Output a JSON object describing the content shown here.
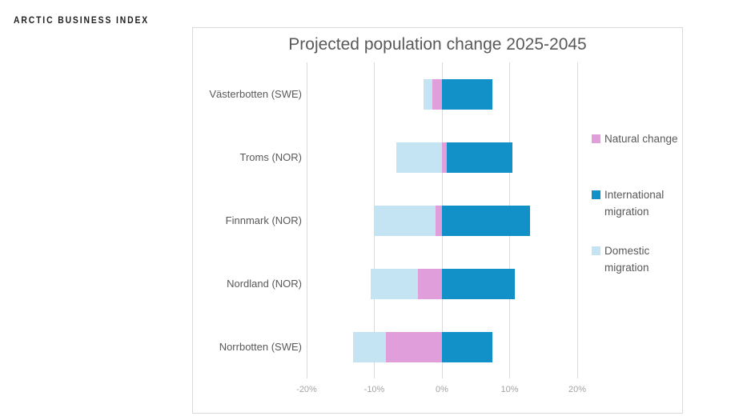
{
  "page": {
    "brand": "ARCTIC BUSINESS INDEX"
  },
  "chart_data": {
    "type": "bar",
    "orientation": "horizontal",
    "stacked": true,
    "title": "Projected population change 2025-2045",
    "categories": [
      "Västerbotten (SWE)",
      "Troms (NOR)",
      "Finnmark (NOR)",
      "Nordland (NOR)",
      "Norrbotten (SWE)"
    ],
    "series": [
      {
        "name": "Natural change",
        "color": "#e09edb",
        "values": [
          -1.4,
          0.7,
          -1.0,
          -3.5,
          -8.3
        ]
      },
      {
        "name": "International migration",
        "color": "#1291c8",
        "values": [
          7.5,
          9.7,
          13.0,
          10.8,
          7.4
        ]
      },
      {
        "name": "Domestic migration",
        "color": "#c5e4f3",
        "values": [
          -1.3,
          -6.7,
          -9.0,
          -7.0,
          -4.8
        ]
      }
    ],
    "x_axis": {
      "min": -20,
      "max": 20,
      "ticks": [
        -20,
        -10,
        0,
        10,
        20
      ],
      "tick_labels": [
        "-20%",
        "-10%",
        "0%",
        "10%",
        "20%"
      ],
      "unit": "percent"
    },
    "legend_position": "right",
    "grid": true,
    "colors": {
      "grid": "#d9d9d9",
      "frame_border": "#d9d9d9",
      "title_text": "#595959",
      "category_text": "#595959",
      "tick_text": "#a3a3a3",
      "legend_text": "#595959"
    }
  }
}
